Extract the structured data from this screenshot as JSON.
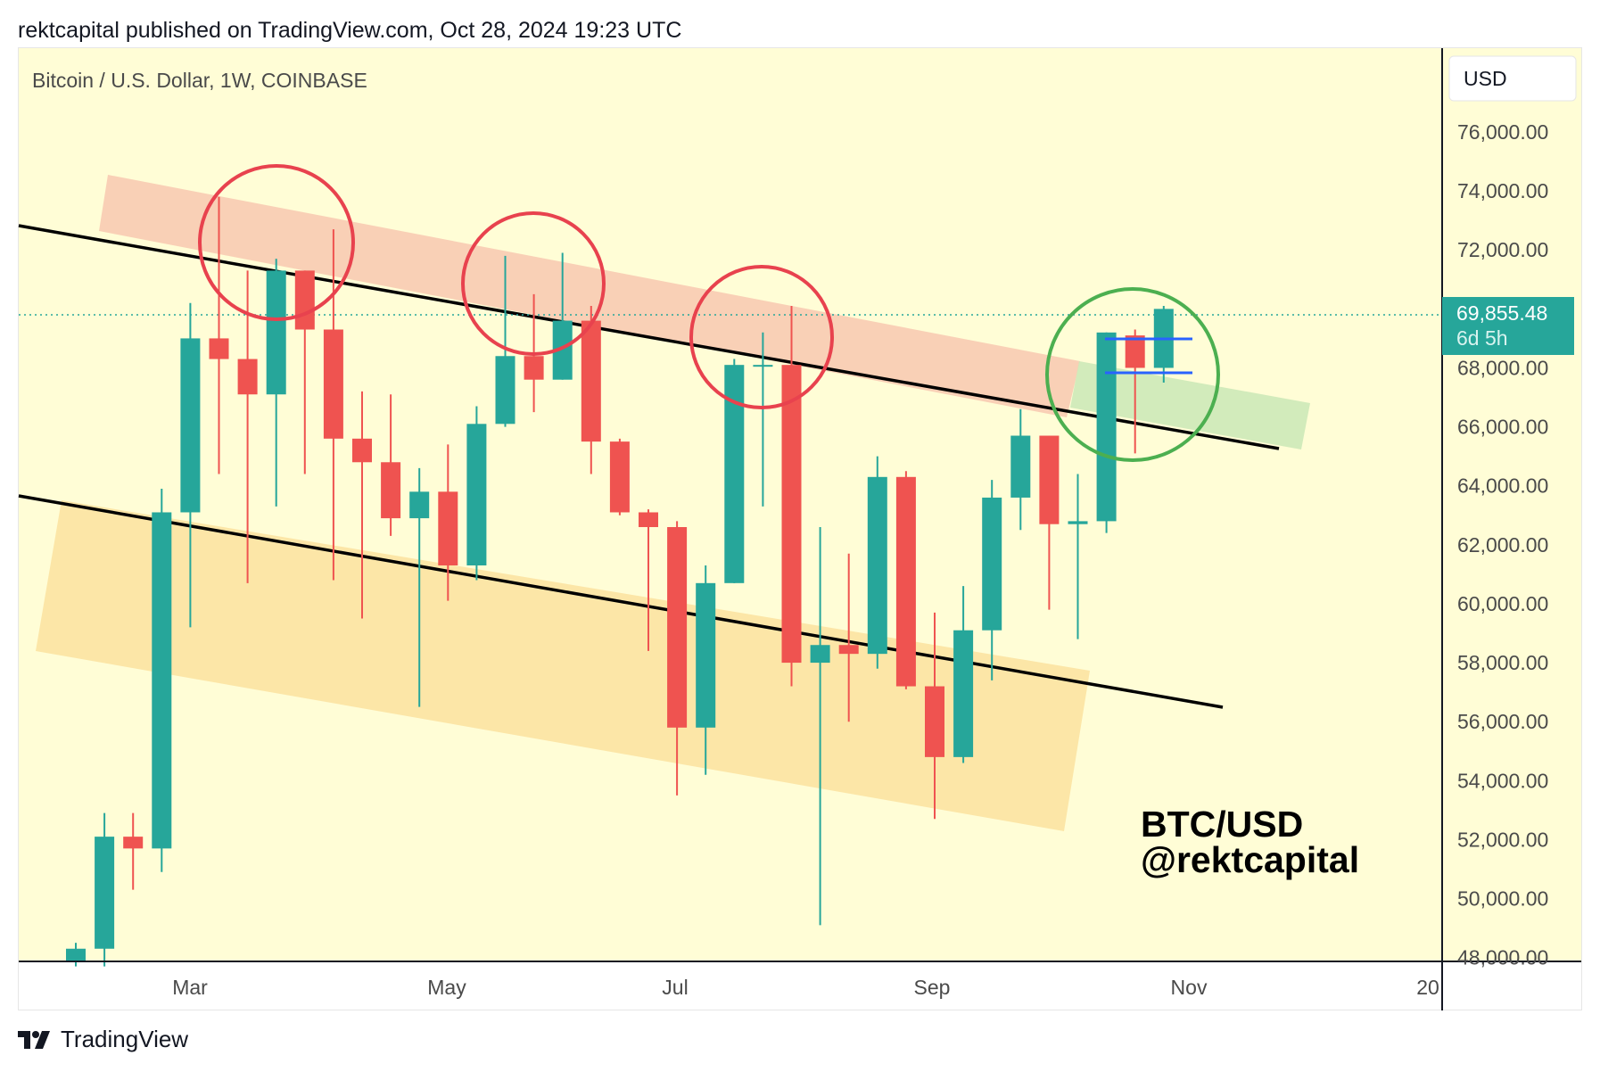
{
  "header": {
    "publish_line": "rektcapital published on TradingView.com, Oct 28, 2024 19:23 UTC"
  },
  "footer": {
    "brand": "TradingView"
  },
  "chart": {
    "symbol_title": "Bitcoin / U.S. Dollar, 1W, COINBASE",
    "currency_button": "USD",
    "price_tag": {
      "price": "69,855.48",
      "countdown": "6d 5h"
    },
    "watermark": [
      "BTC/USD",
      "@rektcapital"
    ],
    "colors": {
      "background": "#fffdd6",
      "up": "#26a69a",
      "down": "#ef5350",
      "resistance_zone": "#f8c8b0",
      "support_zone": "#fce3a2",
      "retest_zone": "#cde9b8",
      "red_circle": "#e8424e",
      "green_circle": "#4caf50",
      "trendline": "#000000",
      "blue_level": "#2962ff",
      "price_tag_bg": "#26a69a"
    }
  },
  "chart_data": {
    "type": "candlestick",
    "title": "Bitcoin / U.S. Dollar, 1W, COINBASE",
    "x_axis_labels": [
      "Mar",
      "May",
      "Jul",
      "Sep",
      "Nov",
      "20"
    ],
    "y_axis_labels": [
      "76,000.00",
      "74,000.00",
      "72,000.00",
      "68,000.00",
      "66,000.00",
      "64,000.00",
      "62,000.00",
      "60,000.00",
      "58,000.00",
      "56,000.00",
      "54,000.00",
      "52,000.00",
      "50,000.00",
      "48,000.00"
    ],
    "ylim": [
      48000,
      77500
    ],
    "last_price": 69855.48,
    "candles": [
      {
        "o": 47900,
        "h": 48500,
        "l": 47700,
        "c": 48300
      },
      {
        "o": 48300,
        "h": 52900,
        "l": 47700,
        "c": 52100
      },
      {
        "o": 52100,
        "h": 52900,
        "l": 50300,
        "c": 51700
      },
      {
        "o": 51700,
        "h": 63900,
        "l": 50900,
        "c": 63100
      },
      {
        "o": 63100,
        "h": 70200,
        "l": 59200,
        "c": 69000
      },
      {
        "o": 69000,
        "h": 73800,
        "l": 64400,
        "c": 68300
      },
      {
        "o": 68300,
        "h": 71300,
        "l": 60700,
        "c": 67100
      },
      {
        "o": 67100,
        "h": 71700,
        "l": 63300,
        "c": 71300
      },
      {
        "o": 71300,
        "h": 71300,
        "l": 64400,
        "c": 69300
      },
      {
        "o": 69300,
        "h": 72700,
        "l": 60800,
        "c": 65600
      },
      {
        "o": 65600,
        "h": 67200,
        "l": 59500,
        "c": 64800
      },
      {
        "o": 64800,
        "h": 67100,
        "l": 62300,
        "c": 62900
      },
      {
        "o": 62900,
        "h": 64600,
        "l": 56500,
        "c": 63800
      },
      {
        "o": 63800,
        "h": 65400,
        "l": 60100,
        "c": 61300
      },
      {
        "o": 61300,
        "h": 66700,
        "l": 60800,
        "c": 66100
      },
      {
        "o": 66100,
        "h": 71800,
        "l": 66000,
        "c": 68400
      },
      {
        "o": 68400,
        "h": 70500,
        "l": 66500,
        "c": 67600
      },
      {
        "o": 67600,
        "h": 71900,
        "l": 67600,
        "c": 69600
      },
      {
        "o": 69600,
        "h": 70100,
        "l": 64400,
        "c": 65500
      },
      {
        "o": 65500,
        "h": 65600,
        "l": 63000,
        "c": 63100
      },
      {
        "o": 63100,
        "h": 63200,
        "l": 58400,
        "c": 62600
      },
      {
        "o": 62600,
        "h": 62800,
        "l": 53500,
        "c": 55800
      },
      {
        "o": 55800,
        "h": 61300,
        "l": 54200,
        "c": 60700
      },
      {
        "o": 60700,
        "h": 68300,
        "l": 60700,
        "c": 68100
      },
      {
        "o": 68100,
        "h": 69200,
        "l": 63300,
        "c": 68100
      },
      {
        "o": 68100,
        "h": 70100,
        "l": 57200,
        "c": 58000
      },
      {
        "o": 58000,
        "h": 62600,
        "l": 49100,
        "c": 58600
      },
      {
        "o": 58600,
        "h": 61700,
        "l": 56000,
        "c": 58300
      },
      {
        "o": 58300,
        "h": 65000,
        "l": 57800,
        "c": 64300
      },
      {
        "o": 64300,
        "h": 64500,
        "l": 57100,
        "c": 57200
      },
      {
        "o": 57200,
        "h": 59700,
        "l": 52700,
        "c": 54800
      },
      {
        "o": 54800,
        "h": 60600,
        "l": 54600,
        "c": 59100
      },
      {
        "o": 59100,
        "h": 64200,
        "l": 57400,
        "c": 63600
      },
      {
        "o": 63600,
        "h": 66600,
        "l": 62500,
        "c": 65700
      },
      {
        "o": 65700,
        "h": 65700,
        "l": 59800,
        "c": 62700
      },
      {
        "o": 62700,
        "h": 64400,
        "l": 58800,
        "c": 62800
      },
      {
        "o": 62800,
        "h": 69200,
        "l": 62400,
        "c": 69200
      },
      {
        "o": 69100,
        "h": 69300,
        "l": 65100,
        "c": 68000
      },
      {
        "o": 68000,
        "h": 70100,
        "l": 67500,
        "c": 70000
      }
    ]
  }
}
